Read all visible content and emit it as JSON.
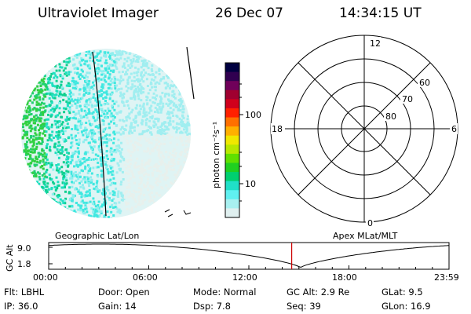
{
  "header": {
    "instrument": "Ultraviolet Imager",
    "date": "26 Dec 07",
    "time": "14:34:15 UT"
  },
  "colorbar": {
    "unit_label": "photon cm⁻²s⁻¹",
    "ticks": [
      "100",
      "10"
    ],
    "colors": [
      "#000040",
      "#300050",
      "#70005a",
      "#a00030",
      "#d0001c",
      "#ff2000",
      "#ff7000",
      "#ffb000",
      "#f0e800",
      "#b8e800",
      "#60e000",
      "#20d020",
      "#00d070",
      "#20e0c8",
      "#60f0f0",
      "#a8f0f0",
      "#e0f0f0"
    ]
  },
  "left_panel": {
    "label": "Geographic Lat/Lon"
  },
  "right_panel": {
    "label": "Apex MLat/MLT",
    "mlt_labels": {
      "top": "12",
      "left": "18",
      "right": "6",
      "bottom": "0"
    },
    "lat_labels": [
      "80",
      "70",
      "60"
    ]
  },
  "altitude_plot": {
    "ylabel": "GC Alt",
    "yticks": [
      "9.0",
      "1.8"
    ],
    "xticks": [
      "00:00",
      "06:00",
      "12:00",
      "18:00",
      "23:59"
    ],
    "current_time_hours": 14.57,
    "line_color": "#000000",
    "marker_color": "#cc0000"
  },
  "info": {
    "row1": [
      {
        "key": "Flt:",
        "value": "LBHL"
      },
      {
        "key": "Door:",
        "value": "Open"
      },
      {
        "key": "Mode:",
        "value": "Normal"
      },
      {
        "key": "GC Alt:",
        "value": "2.9 Re"
      },
      {
        "key": "GLat:",
        "value": "9.5"
      }
    ],
    "row2": [
      {
        "key": "IP:",
        "value": "36.0"
      },
      {
        "key": "Gain:",
        "value": "14"
      },
      {
        "key": "Dsp:",
        "value": "7.8"
      },
      {
        "key": "Seq:",
        "value": "39"
      },
      {
        "key": "GLon:",
        "value": "16.9"
      }
    ]
  }
}
